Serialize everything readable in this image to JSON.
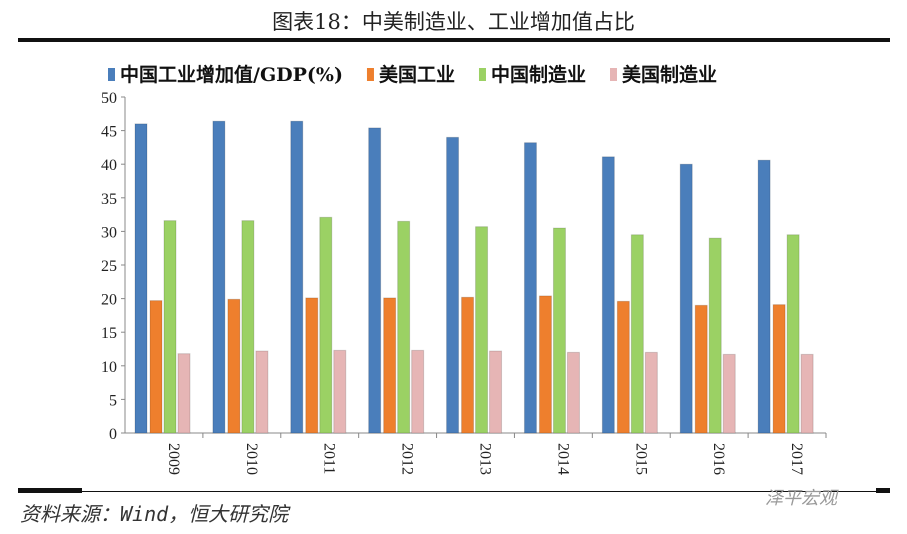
{
  "title": "图表18：中美制造业、工业增加值占比",
  "source": "资料来源：Wind，恒大研究院",
  "watermark": "泽平宏观",
  "chart_data": {
    "type": "bar",
    "title": "图表18：中美制造业、工业增加值占比",
    "xlabel": "",
    "ylabel": "",
    "ylim": [
      0,
      50
    ],
    "yticks": [
      0,
      5,
      10,
      15,
      20,
      25,
      30,
      35,
      40,
      45,
      50
    ],
    "grid": false,
    "legend": "top",
    "categories": [
      "2009",
      "2010",
      "2011",
      "2012",
      "2013",
      "2014",
      "2015",
      "2016",
      "2017"
    ],
    "series": [
      {
        "name": "中国工业增加值/GDP(%)",
        "color": "#4a7ebb",
        "values": [
          46.0,
          46.4,
          46.4,
          45.4,
          44.0,
          43.2,
          41.1,
          40.0,
          40.6
        ]
      },
      {
        "name": "美国工业",
        "color": "#ee7f2d",
        "values": [
          19.7,
          19.9,
          20.1,
          20.1,
          20.2,
          20.4,
          19.6,
          19.0,
          19.1
        ]
      },
      {
        "name": "中国制造业",
        "color": "#9bd164",
        "values": [
          31.6,
          31.6,
          32.1,
          31.5,
          30.7,
          30.5,
          29.5,
          29.0,
          29.5
        ]
      },
      {
        "name": "美国制造业",
        "color": "#e6b5b5",
        "values": [
          11.8,
          12.2,
          12.3,
          12.3,
          12.2,
          12.0,
          12.0,
          11.7,
          11.7
        ]
      }
    ]
  }
}
